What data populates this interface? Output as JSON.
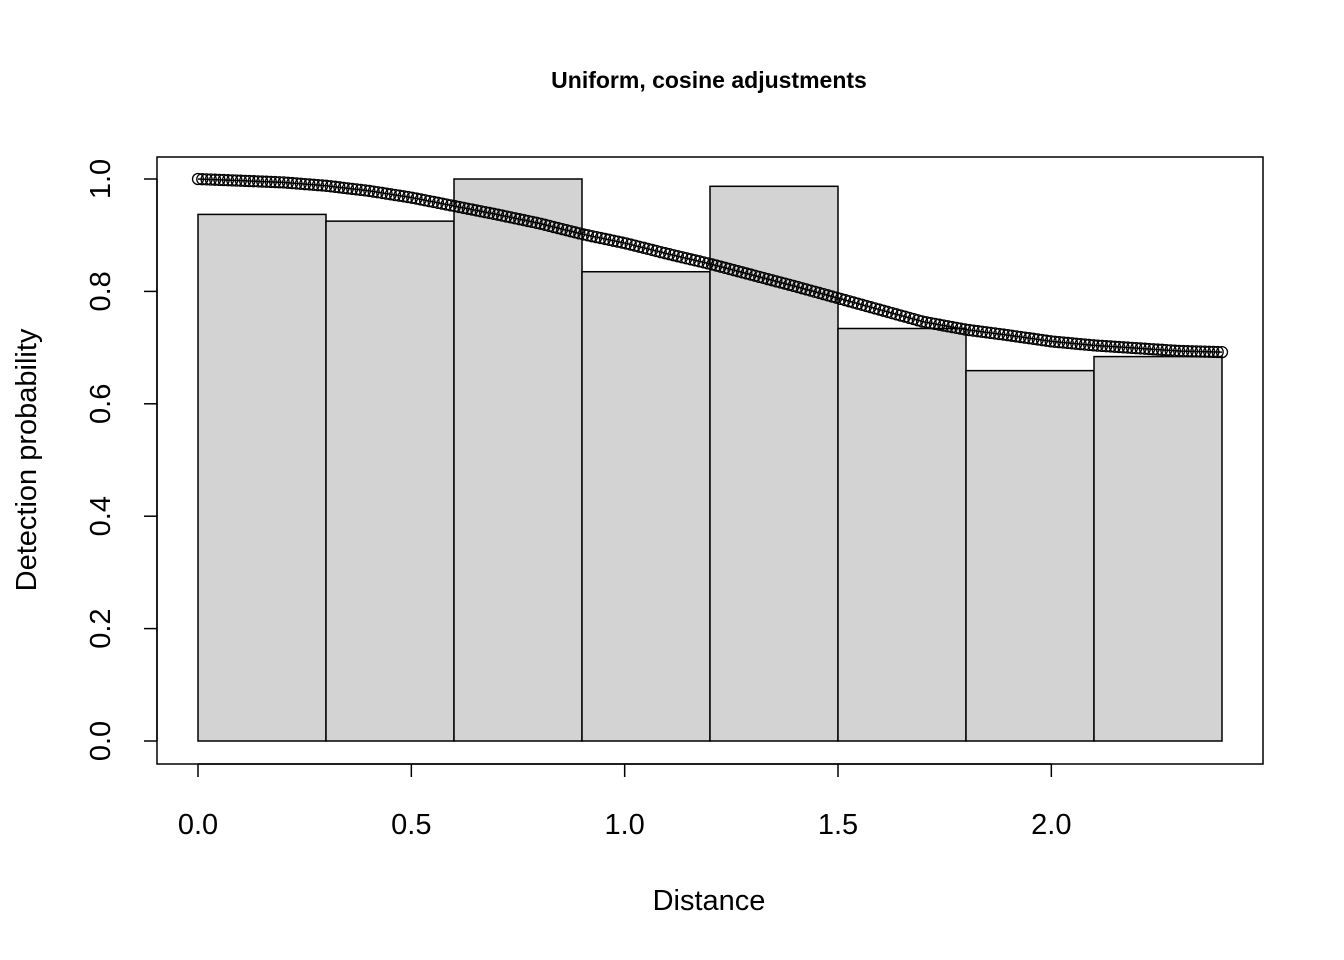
{
  "chart_data": {
    "type": "bar",
    "title": "Uniform, cosine adjustments",
    "xlabel": "Distance",
    "ylabel": "Detection probability",
    "xlim": [
      0,
      2.4
    ],
    "ylim": [
      0,
      1.0
    ],
    "x_ticks": [
      "0.0",
      "0.5",
      "1.0",
      "1.5",
      "2.0"
    ],
    "y_ticks": [
      "0.0",
      "0.2",
      "0.4",
      "0.6",
      "0.8",
      "1.0"
    ],
    "bins": [
      {
        "from": 0.0,
        "to": 0.3,
        "value": 0.937
      },
      {
        "from": 0.3,
        "to": 0.6,
        "value": 0.925
      },
      {
        "from": 0.6,
        "to": 0.9,
        "value": 1.0
      },
      {
        "from": 0.9,
        "to": 1.2,
        "value": 0.835
      },
      {
        "from": 1.2,
        "to": 1.5,
        "value": 0.987
      },
      {
        "from": 1.5,
        "to": 1.8,
        "value": 0.734
      },
      {
        "from": 1.8,
        "to": 2.1,
        "value": 0.659
      },
      {
        "from": 2.1,
        "to": 2.4,
        "value": 0.684
      }
    ],
    "bar_color": "#d3d3d3",
    "fitted_curve": {
      "x": [
        0.0,
        0.1,
        0.2,
        0.3,
        0.4,
        0.5,
        0.6,
        0.7,
        0.8,
        0.9,
        1.0,
        1.1,
        1.2,
        1.3,
        1.4,
        1.5,
        1.6,
        1.7,
        1.8,
        1.9,
        2.0,
        2.1,
        2.2,
        2.3,
        2.4
      ],
      "y": [
        1.0,
        0.997,
        0.994,
        0.988,
        0.979,
        0.967,
        0.952,
        0.937,
        0.921,
        0.902,
        0.886,
        0.867,
        0.849,
        0.829,
        0.809,
        0.788,
        0.767,
        0.746,
        0.732,
        0.722,
        0.711,
        0.704,
        0.699,
        0.694,
        0.692
      ],
      "markers": "open-circle"
    }
  }
}
